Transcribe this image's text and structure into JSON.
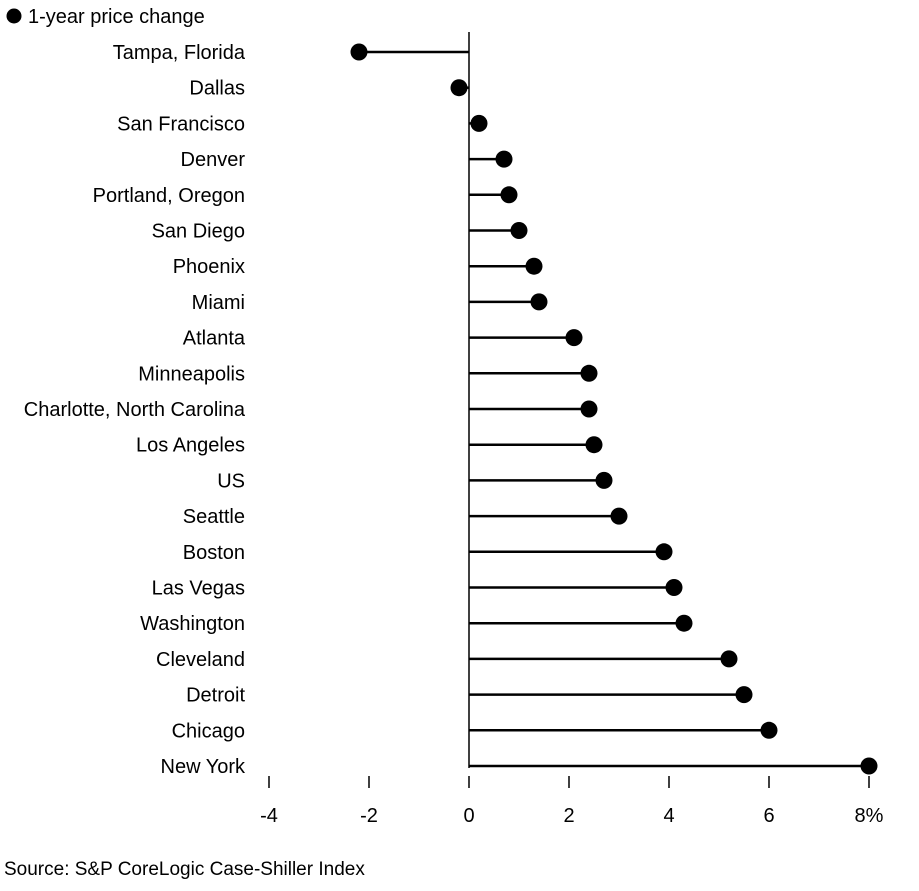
{
  "chart_data": {
    "type": "lollipop",
    "legend": [
      {
        "label": "1-year price change",
        "color": "#000000"
      }
    ],
    "legend_placement": "top-left",
    "series": [
      {
        "name": "1-year price change",
        "color": "#000000",
        "points": [
          {
            "city": "Tampa, Florida",
            "value": -2.2
          },
          {
            "city": "Dallas",
            "value": -0.2
          },
          {
            "city": "San Francisco",
            "value": 0.2
          },
          {
            "city": "Denver",
            "value": 0.7
          },
          {
            "city": "Portland, Oregon",
            "value": 0.8
          },
          {
            "city": "San Diego",
            "value": 1.0
          },
          {
            "city": "Phoenix",
            "value": 1.3
          },
          {
            "city": "Miami",
            "value": 1.4
          },
          {
            "city": "Atlanta",
            "value": 2.1
          },
          {
            "city": "Minneapolis",
            "value": 2.4
          },
          {
            "city": "Charlotte, North Carolina",
            "value": 2.4
          },
          {
            "city": "Los Angeles",
            "value": 2.5
          },
          {
            "city": "US",
            "value": 2.7
          },
          {
            "city": "Seattle",
            "value": 3.0
          },
          {
            "city": "Boston",
            "value": 3.9
          },
          {
            "city": "Las Vegas",
            "value": 4.1
          },
          {
            "city": "Washington",
            "value": 4.3
          },
          {
            "city": "Cleveland",
            "value": 5.2
          },
          {
            "city": "Detroit",
            "value": 5.5
          },
          {
            "city": "Chicago",
            "value": 6.0
          },
          {
            "city": "New York",
            "value": 8.0
          }
        ]
      }
    ],
    "x_axis": {
      "range": [
        -4,
        8
      ],
      "ticks": [
        {
          "value": -4,
          "label": "-4"
        },
        {
          "value": -2,
          "label": "-2"
        },
        {
          "value": 0,
          "label": "0"
        },
        {
          "value": 2,
          "label": "2"
        },
        {
          "value": 4,
          "label": "4"
        },
        {
          "value": 6,
          "label": "6"
        },
        {
          "value": 8,
          "label": "8%"
        }
      ]
    },
    "grid": false
  },
  "source": "Source: S&P CoreLogic Case-Shiller Index"
}
